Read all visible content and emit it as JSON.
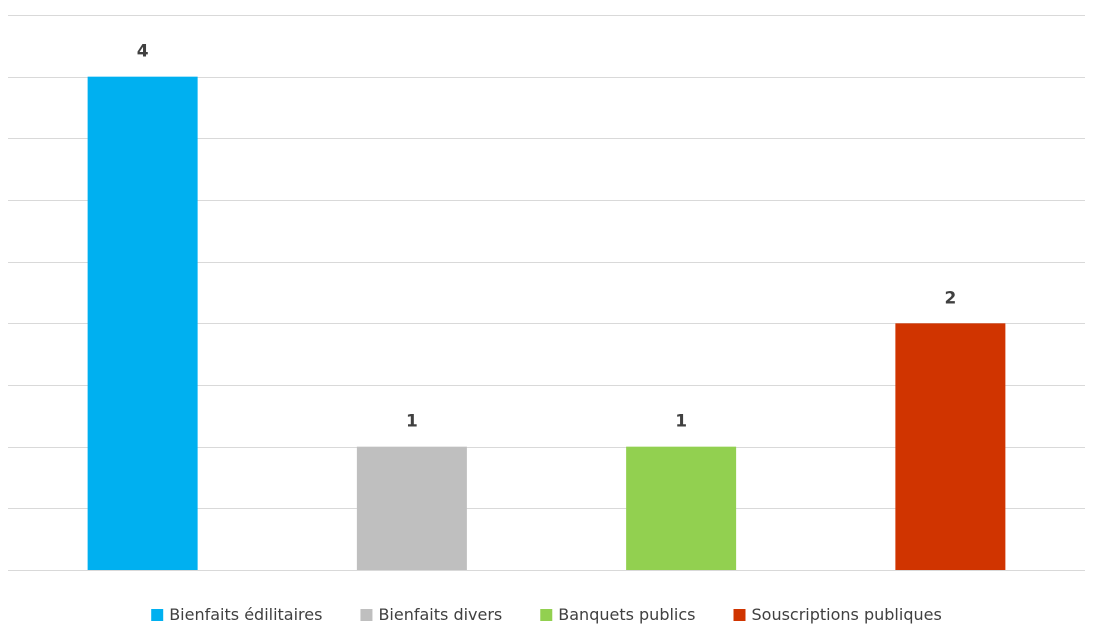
{
  "chart_data": {
    "type": "bar",
    "categories": [
      "Bienfaits édilitaires",
      "Bienfaits divers",
      "Banquets publics",
      "Souscriptions publiques"
    ],
    "values": [
      4,
      1,
      1,
      2
    ],
    "colors": [
      "#00b0f0",
      "#bfbfbf",
      "#92d050",
      "#d03400"
    ],
    "ylim": [
      0,
      4.5
    ],
    "gridline_step": 0.5,
    "grid": true,
    "data_labels": true,
    "legend_position": "bottom",
    "title": "",
    "xlabel": "",
    "ylabel": ""
  }
}
